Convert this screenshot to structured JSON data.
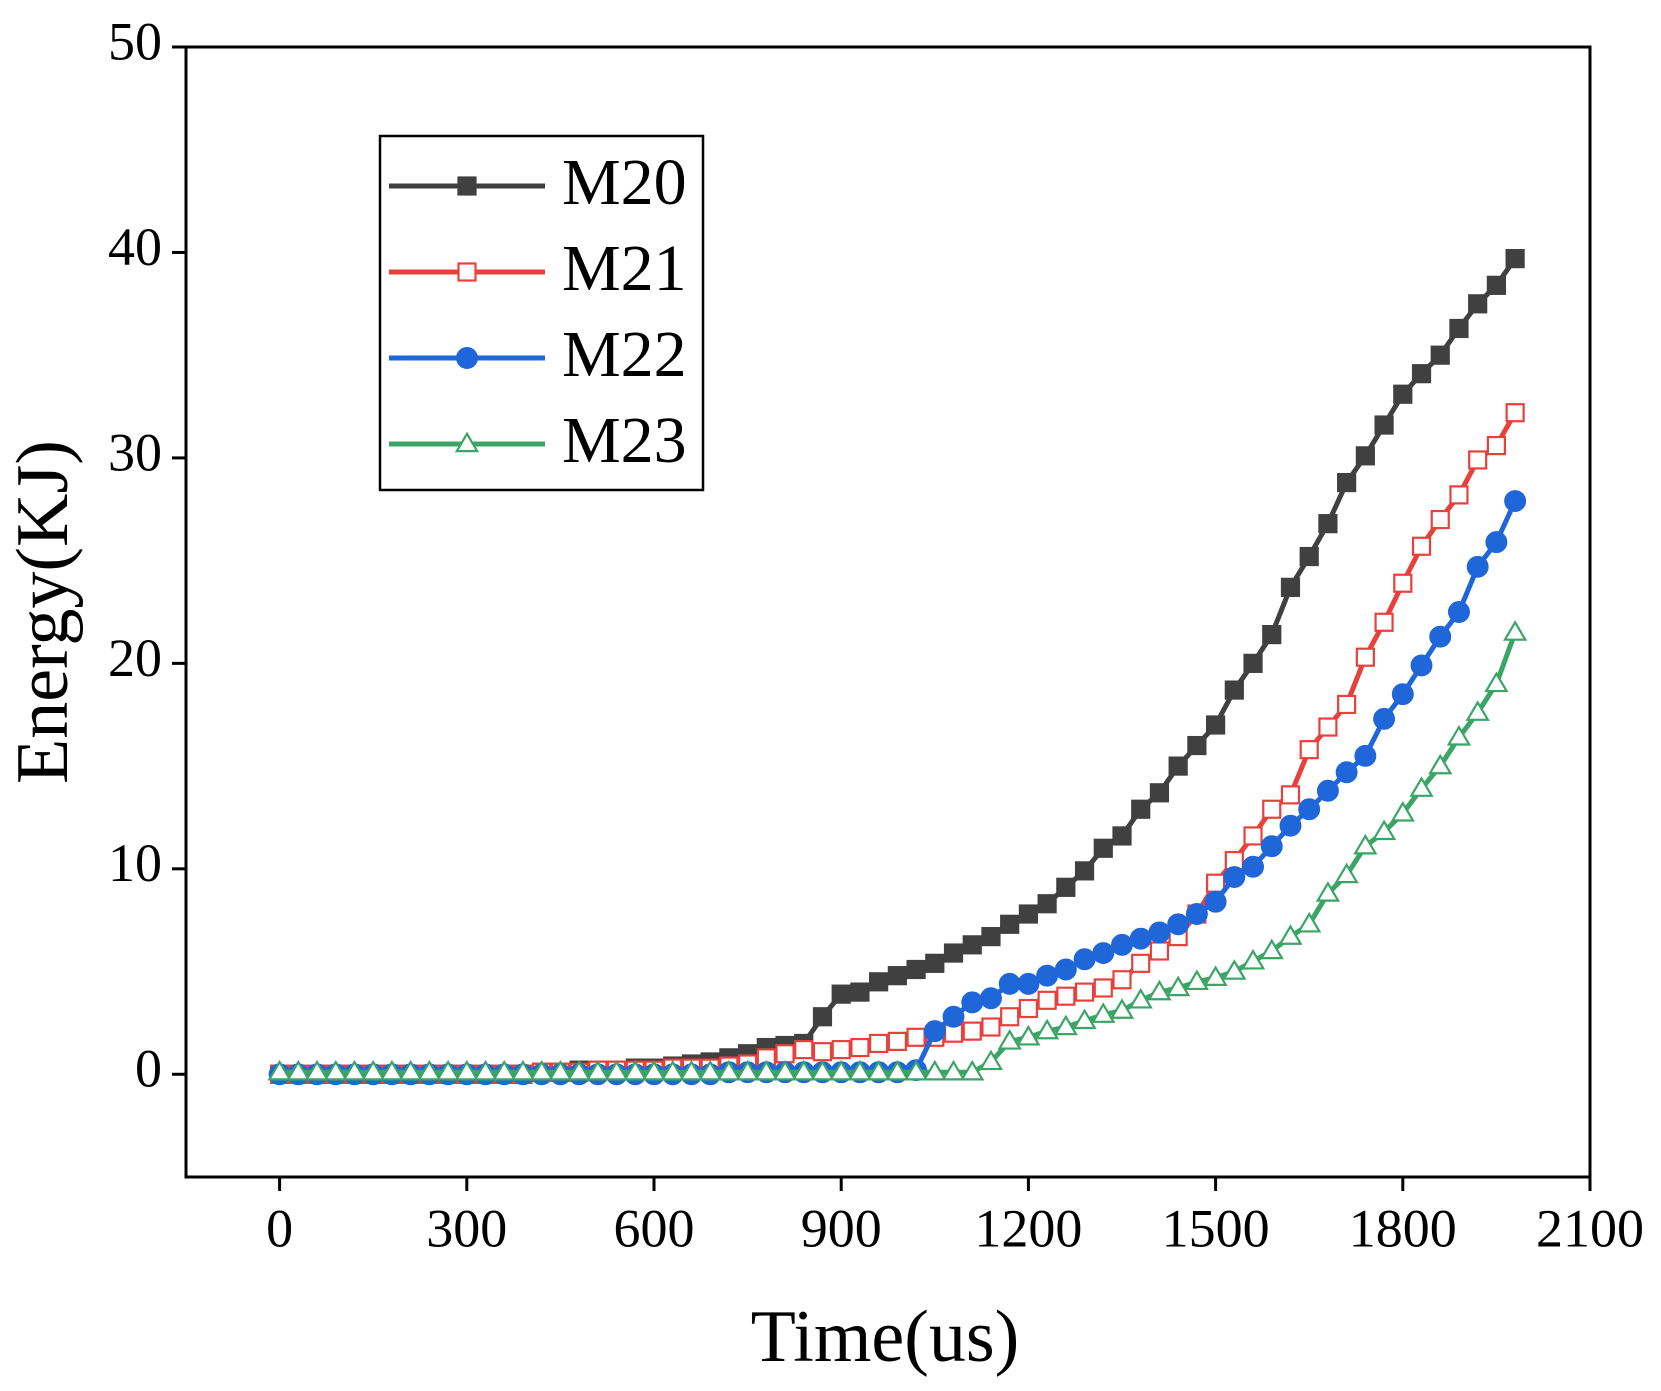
{
  "chart_data": {
    "type": "line",
    "x_label": "Time(us)",
    "y_label": "Energy(KJ)",
    "x": [
      0,
      30,
      60,
      90,
      120,
      150,
      180,
      210,
      240,
      270,
      300,
      330,
      360,
      390,
      420,
      450,
      480,
      510,
      540,
      570,
      600,
      630,
      660,
      690,
      720,
      750,
      780,
      810,
      840,
      870,
      900,
      930,
      960,
      990,
      1020,
      1050,
      1080,
      1110,
      1140,
      1170,
      1200,
      1230,
      1260,
      1290,
      1320,
      1350,
      1380,
      1410,
      1440,
      1470,
      1500,
      1530,
      1560,
      1590,
      1620,
      1650,
      1680,
      1710,
      1740,
      1770,
      1800,
      1830,
      1860,
      1890,
      1920,
      1950,
      1980
    ],
    "series": [
      {
        "name": "M20",
        "color": "#404040",
        "marker": "square",
        "filled": true,
        "values": [
          0,
          0,
          0,
          0,
          0,
          0,
          0,
          0,
          0,
          0,
          0,
          0,
          0,
          0,
          0.1,
          0.1,
          0.2,
          0.2,
          0.2,
          0.3,
          0.3,
          0.4,
          0.5,
          0.6,
          0.8,
          1.0,
          1.3,
          1.4,
          1.5,
          2.8,
          3.9,
          4.0,
          4.5,
          4.8,
          5.1,
          5.4,
          5.9,
          6.3,
          6.7,
          7.3,
          7.8,
          8.3,
          9.1,
          9.9,
          11.0,
          11.6,
          12.9,
          13.7,
          15.0,
          16.0,
          17.0,
          18.7,
          20.0,
          21.4,
          23.7,
          25.2,
          26.8,
          28.8,
          30.1,
          31.6,
          33.1,
          34.1,
          35.0,
          36.3,
          37.5,
          38.4,
          39.7
        ]
      },
      {
        "name": "M21",
        "color": "#e8413c",
        "marker": "square",
        "filled": false,
        "values": [
          0,
          0,
          0,
          0,
          0,
          0,
          0,
          0,
          0,
          0,
          0,
          0,
          0,
          0,
          0.1,
          0.1,
          0.1,
          0.2,
          0.2,
          0.2,
          0.2,
          0.3,
          0.3,
          0.3,
          0.4,
          0.5,
          0.8,
          1.0,
          1.2,
          1.1,
          1.2,
          1.3,
          1.5,
          1.6,
          1.8,
          1.8,
          2.0,
          2.1,
          2.3,
          2.8,
          3.2,
          3.6,
          3.8,
          4.0,
          4.2,
          4.6,
          5.4,
          6.0,
          6.7,
          7.8,
          9.3,
          10.4,
          11.6,
          12.9,
          13.6,
          15.8,
          16.9,
          18.0,
          20.3,
          22.0,
          23.9,
          25.7,
          27.0,
          28.2,
          29.9,
          30.6,
          32.2
        ]
      },
      {
        "name": "M22",
        "color": "#1f66d9",
        "marker": "circle",
        "filled": true,
        "values": [
          0,
          0,
          0,
          0,
          0,
          0,
          0,
          0,
          0,
          0,
          0,
          0,
          0,
          0,
          0,
          0,
          0,
          0,
          0,
          0,
          0,
          0,
          0,
          0,
          0.1,
          0.1,
          0.1,
          0.1,
          0.1,
          0.1,
          0.1,
          0.1,
          0.1,
          0.1,
          0.2,
          2.1,
          2.8,
          3.5,
          3.7,
          4.4,
          4.4,
          4.8,
          5.1,
          5.6,
          5.9,
          6.3,
          6.6,
          6.9,
          7.3,
          7.8,
          8.4,
          9.6,
          10.1,
          11.1,
          12.1,
          12.9,
          13.8,
          14.7,
          15.5,
          17.3,
          18.5,
          19.9,
          21.3,
          22.5,
          24.7,
          25.9,
          27.9
        ]
      },
      {
        "name": "M23",
        "color": "#3aa565",
        "marker": "triangle",
        "filled": false,
        "values": [
          0.1,
          0.1,
          0.1,
          0.1,
          0.1,
          0.1,
          0.1,
          0.1,
          0.1,
          0.1,
          0.1,
          0.1,
          0.1,
          0.1,
          0.1,
          0.1,
          0.1,
          0.1,
          0.1,
          0.1,
          0.1,
          0.1,
          0.1,
          0.1,
          0.1,
          0.1,
          0.1,
          0.1,
          0.1,
          0.1,
          0.1,
          0.1,
          0.1,
          0.1,
          0.1,
          0.1,
          0.1,
          0.1,
          0.6,
          1.6,
          1.8,
          2.1,
          2.3,
          2.6,
          2.9,
          3.1,
          3.6,
          4.0,
          4.2,
          4.5,
          4.7,
          5.0,
          5.5,
          6.0,
          6.7,
          7.3,
          8.8,
          9.7,
          11.1,
          11.8,
          12.7,
          13.9,
          15.0,
          16.4,
          17.6,
          19.0,
          21.5
        ]
      }
    ],
    "xlim": [
      -150,
      2100
    ],
    "xticks": [
      0,
      300,
      600,
      900,
      1200,
      1500,
      1800,
      2100
    ],
    "ylim": [
      -5,
      50
    ],
    "yticks": [
      0,
      10,
      20,
      30,
      40,
      50
    ],
    "legend": "upper left",
    "grid": false
  }
}
